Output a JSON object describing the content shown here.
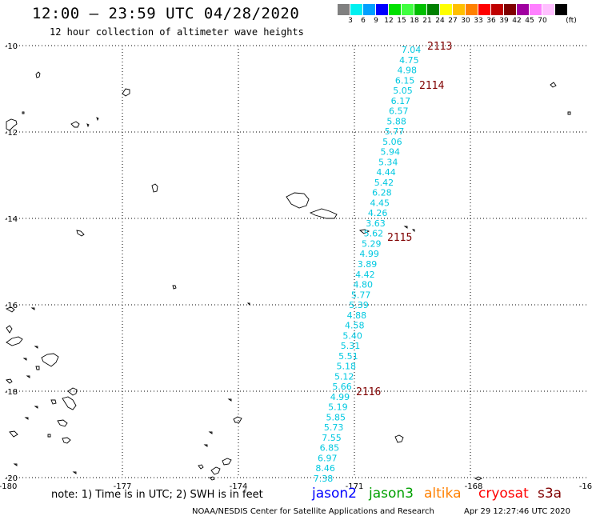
{
  "header": {
    "title": "12:00 – 23:59 UTC 04/28/2020",
    "subtitle": "12 hour collection of altimeter wave heights"
  },
  "colorbar": {
    "colors": [
      "#808080",
      "#00f0f0",
      "#00a0ff",
      "#0000ff",
      "#00e000",
      "#40ff40",
      "#00c000",
      "#008000",
      "#ffff00",
      "#ffc000",
      "#ff8000",
      "#ff0000",
      "#c00000",
      "#800000",
      "#a000a0",
      "#ff80ff",
      "#ffc0ff",
      "#000000"
    ],
    "labels": [
      "3",
      "6",
      "9",
      "12",
      "15",
      "18",
      "21",
      "24",
      "27",
      "30",
      "33",
      "36",
      "39",
      "42",
      "45",
      "70"
    ],
    "unit": "(ft)"
  },
  "map": {
    "lon_ticks": [
      "-180",
      "-177",
      "-174",
      "-171",
      "-168",
      "-16"
    ],
    "lat_ticks": [
      "-10",
      "-12",
      "-14",
      "-16",
      "-18",
      "-20"
    ],
    "pass_labels": [
      "2113",
      "2114",
      "2115",
      "2116"
    ],
    "track_values": [
      "7.04",
      "4.75",
      "4.98",
      "6.15",
      "5.05",
      "6.17",
      "6.57",
      "5.88",
      "5.77",
      "5.06",
      "5.94",
      "5.34",
      "4.44",
      "5.42",
      "6.28",
      "4.45",
      "4.26",
      "3.63",
      "5.62",
      "5.29",
      "4.99",
      "3.89",
      "4.42",
      "4.80",
      "5.77",
      "5.39",
      "4.88",
      "4.58",
      "5.40",
      "5.31",
      "5.51",
      "5.18",
      "5.12",
      "5.66",
      "4.99",
      "5.19",
      "5.85",
      "5.73",
      "7.55",
      "6.85",
      "6.97",
      "8.46",
      "7.38"
    ]
  },
  "footer": {
    "note": "note:  1) Time is in UTC;  2) SWH is in feet",
    "legend": [
      {
        "name": "jason2",
        "color": "#0000ff"
      },
      {
        "name": "jason3",
        "color": "#00a000"
      },
      {
        "name": "altika",
        "color": "#ff8000"
      },
      {
        "name": "cryosat",
        "color": "#ff0000"
      },
      {
        "name": "s3a",
        "color": "#800000"
      }
    ],
    "credit": "NOAA/NESDIS Center for Satellite Applications and Research",
    "timestamp": "Apr 29 12:27:46 UTC 2020"
  }
}
